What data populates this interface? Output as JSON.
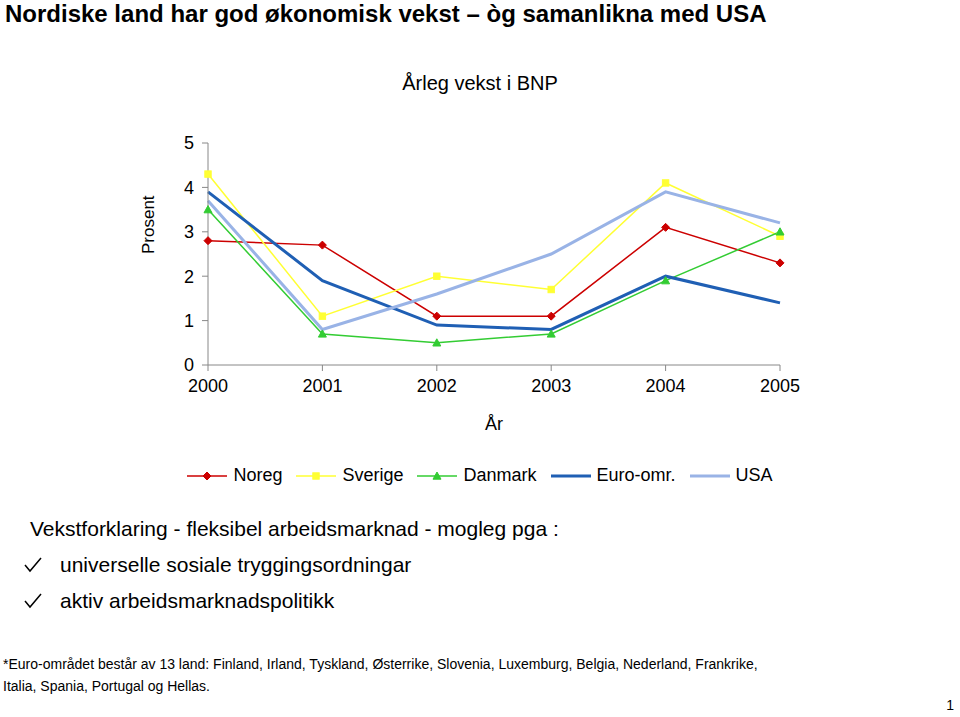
{
  "title": "Nordiske land har god økonomisk vekst – òg samanlikna med USA",
  "chart_data": {
    "type": "line",
    "title": "Årleg vekst i BNP",
    "x_label": "År",
    "y_label": "Prosent",
    "categories": [
      "2000",
      "2001",
      "2002",
      "2003",
      "2004",
      "2005"
    ],
    "series": [
      {
        "name": "Noreg",
        "color": "#cc0000",
        "marker": "diamond",
        "line_style": "solid",
        "values": [
          2.8,
          2.7,
          1.1,
          1.1,
          3.1,
          2.3
        ]
      },
      {
        "name": "Sverige",
        "color": "#ffff33",
        "marker": "square",
        "line_style": "solid",
        "values": [
          4.3,
          1.1,
          2.0,
          1.7,
          4.1,
          2.9
        ]
      },
      {
        "name": "Danmark",
        "color": "#33cc33",
        "marker": "triangle",
        "line_style": "solid",
        "values": [
          3.5,
          0.7,
          0.5,
          0.7,
          1.9,
          3.0
        ]
      },
      {
        "name": "Euro-omr.",
        "color": "#1f5fb4",
        "marker": "none",
        "line_style": "solid",
        "values": [
          3.9,
          1.9,
          0.9,
          0.8,
          2.0,
          1.4
        ]
      },
      {
        "name": "USA",
        "color": "#99b3e6",
        "marker": "none",
        "line_style": "solid",
        "values": [
          3.7,
          0.8,
          1.6,
          2.5,
          3.9,
          3.2
        ]
      }
    ],
    "ylim": [
      0,
      5
    ],
    "yticks": [
      0,
      1,
      2,
      3,
      4,
      5
    ],
    "grid": false,
    "legend": "bottom"
  },
  "text": {
    "heading": "Vekstforklaring - fleksibel arbeidsmarknad - mogleg pga :",
    "bullets": [
      "universelle sosiale tryggingsordningar",
      "aktiv arbeidsmarknadspolitikk"
    ]
  },
  "footnote": [
    "*Euro-området består av 13 land: Finland, Irland, Tyskland, Østerrike, Slovenia, Luxemburg, Belgia, Nederland, Frankrike,",
    "Italia, Spania, Portugal og Hellas."
  ],
  "page_number": 1
}
